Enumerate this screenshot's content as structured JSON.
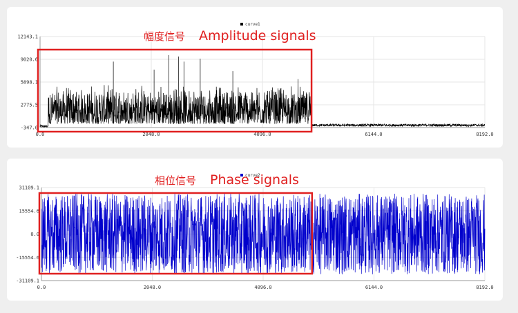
{
  "chart_data": [
    {
      "type": "line",
      "series": [
        {
          "name": "curve1",
          "color": "#000000"
        }
      ],
      "legend": {
        "position": "top-center",
        "label": "curve1"
      },
      "x_ticks": [
        "0.0",
        "2048.0",
        "4096.0",
        "6144.0",
        "8192.0"
      ],
      "y_ticks": [
        "12143.1",
        "9020.6",
        "5898.1",
        "2775.5",
        "-347.0"
      ],
      "xlim": [
        0,
        8192
      ],
      "ylim": [
        -347.0,
        12143.1
      ],
      "grid": true,
      "annotation": {
        "cn": "幅度信号",
        "en": "Amplitude signals",
        "color": "#e02020"
      },
      "highlight_x_range": [
        0,
        5000
      ],
      "regions": [
        {
          "x_start": 0,
          "x_end": 150,
          "min": -347,
          "max": 0
        },
        {
          "x_start": 150,
          "x_end": 5000,
          "min": -347,
          "max": 9800
        },
        {
          "x_start": 5000,
          "x_end": 8192,
          "min": -200,
          "max": 150
        }
      ],
      "peaks": [
        {
          "x": 1350,
          "y": 8700
        },
        {
          "x": 2100,
          "y": 7600
        },
        {
          "x": 2370,
          "y": 9600
        },
        {
          "x": 2550,
          "y": 9400
        },
        {
          "x": 2650,
          "y": 8700
        },
        {
          "x": 2950,
          "y": 9100
        },
        {
          "x": 3550,
          "y": 7400
        },
        {
          "x": 4750,
          "y": 6300
        }
      ]
    },
    {
      "type": "line",
      "series": [
        {
          "name": "curve2",
          "color": "#0000cc"
        }
      ],
      "legend": {
        "position": "top-center",
        "label": "curve2"
      },
      "x_ticks": [
        "0.0",
        "2048.0",
        "4096.0",
        "6144.0",
        "8192.0"
      ],
      "y_ticks": [
        "31109.1",
        "15554.6",
        "0.0",
        "-15554.6",
        "-31109.1"
      ],
      "xlim": [
        0,
        8192
      ],
      "ylim": [
        -31109.1,
        31109.1
      ],
      "grid": true,
      "annotation": {
        "cn": "相位信号",
        "en": "Phase signals",
        "color": "#e02020"
      },
      "highlight_x_range": [
        0,
        5000
      ],
      "regions": [
        {
          "x_start": 0,
          "x_end": 5000,
          "min": -27000,
          "max": 27000
        },
        {
          "x_start": 5000,
          "x_end": 8192,
          "min": -27000,
          "max": 27000
        }
      ]
    }
  ]
}
